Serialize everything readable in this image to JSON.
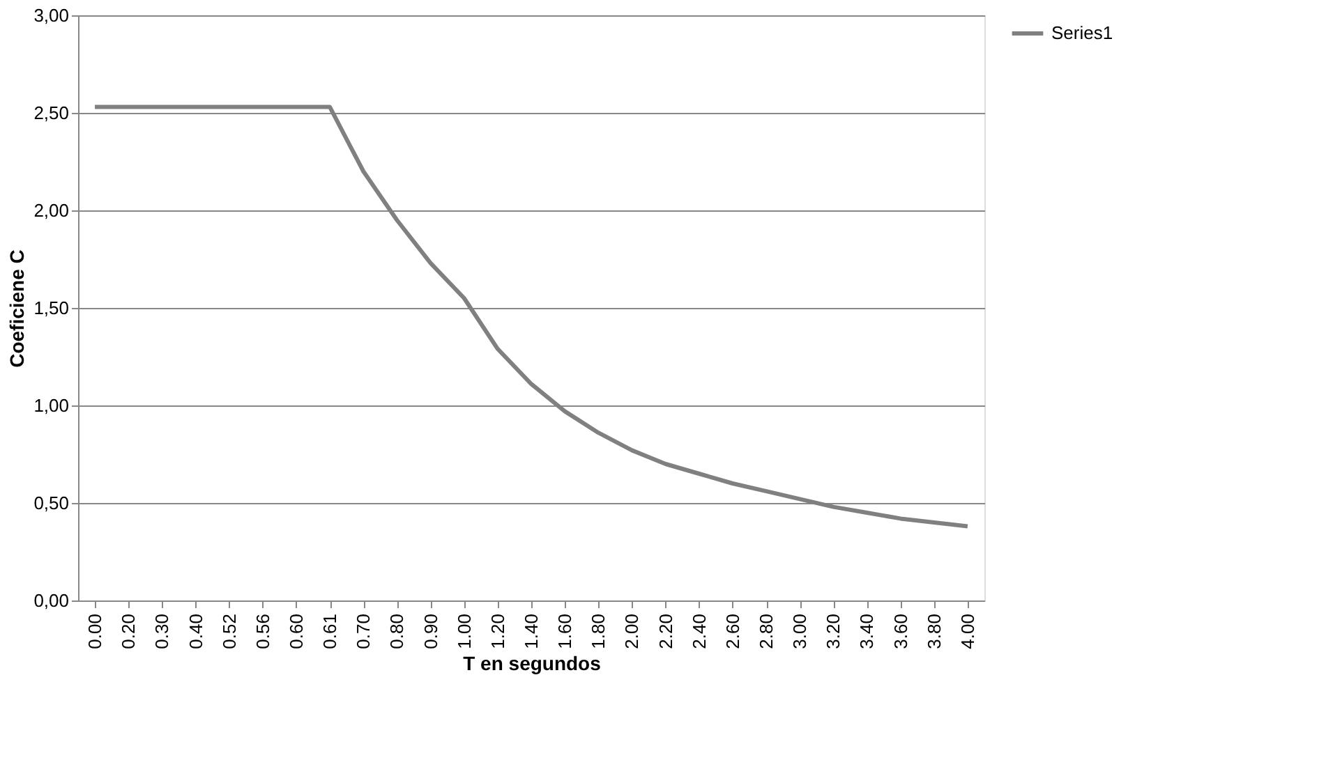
{
  "chart_data": {
    "type": "line",
    "xlabel": "T en segundos",
    "ylabel": "Coeficiene C",
    "categories": [
      "0.00",
      "0.20",
      "0.30",
      "0.40",
      "0.52",
      "0.56",
      "0.60",
      "0.61",
      "0.70",
      "0.80",
      "0.90",
      "1.00",
      "1.20",
      "1.40",
      "1.60",
      "1.80",
      "2.00",
      "2.20",
      "2.40",
      "2.60",
      "2.80",
      "3.00",
      "3.20",
      "3.40",
      "3.60",
      "3.80",
      "4.00"
    ],
    "series": [
      {
        "name": "Series1",
        "color": "#808080",
        "values": [
          2.53,
          2.53,
          2.53,
          2.53,
          2.53,
          2.53,
          2.53,
          2.53,
          2.2,
          1.95,
          1.73,
          1.55,
          1.29,
          1.11,
          0.97,
          0.86,
          0.77,
          0.7,
          0.65,
          0.6,
          0.56,
          0.52,
          0.48,
          0.45,
          0.42,
          0.4,
          0.38
        ]
      }
    ],
    "ylim": [
      0,
      3
    ],
    "yticks": [
      {
        "value": 0,
        "label": "0,00"
      },
      {
        "value": 0.5,
        "label": "0,50"
      },
      {
        "value": 1,
        "label": "1,00"
      },
      {
        "value": 1.5,
        "label": "1,50"
      },
      {
        "value": 2,
        "label": "2,00"
      },
      {
        "value": 2.5,
        "label": "2,50"
      },
      {
        "value": 3,
        "label": "3,00"
      }
    ],
    "grid": "y",
    "legend": "right",
    "marker": "none",
    "line_style": "solid"
  }
}
